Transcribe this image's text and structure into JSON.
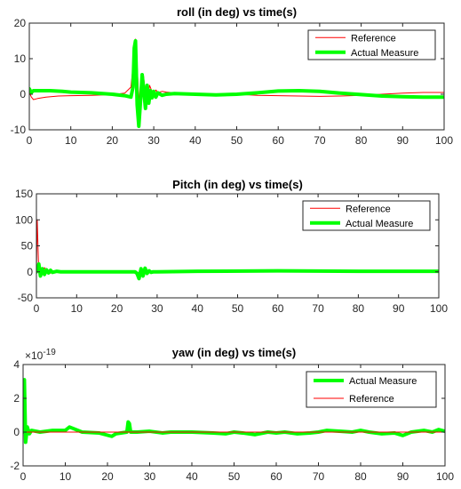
{
  "chart_data": [
    {
      "type": "line",
      "title": "roll (in deg) vs time(s)",
      "xlim": [
        0,
        100
      ],
      "ylim": [
        -10,
        20
      ],
      "xticks": [
        0,
        10,
        20,
        30,
        40,
        50,
        60,
        70,
        80,
        90,
        100
      ],
      "yticks": [
        -10,
        0,
        10,
        20
      ],
      "exponent_label": "",
      "legend_position": "top-right",
      "series": [
        {
          "name": "Reference",
          "color": "#ff0000",
          "line_width": 1,
          "x": [
            0,
            0.5,
            1,
            2,
            4,
            7,
            10,
            15,
            20,
            23,
            24.5,
            25.2,
            25.6,
            26,
            26.5,
            27,
            27.5,
            28,
            28.5,
            29,
            29.5,
            30,
            30.5,
            31,
            32,
            33,
            35,
            40,
            45,
            50,
            55,
            60,
            65,
            70,
            75,
            80,
            85,
            90,
            95,
            100
          ],
          "y": [
            0.5,
            -0.8,
            -1.5,
            -1.2,
            -0.8,
            -0.5,
            -0.4,
            -0.3,
            -0.1,
            0.3,
            2,
            10,
            15.5,
            8,
            -4,
            1,
            5.5,
            0,
            -1.5,
            2.5,
            1,
            -0.8,
            1.2,
            0.5,
            0.8,
            0.6,
            0.4,
            0.2,
            0,
            0,
            -0.3,
            -0.4,
            -0.5,
            -0.6,
            -0.5,
            -0.3,
            0,
            0.3,
            0.5,
            0.5
          ]
        },
        {
          "name": "Actual Measure",
          "color": "#00ff00",
          "line_width": 4,
          "x": [
            0,
            0.5,
            1,
            3,
            5,
            8,
            10,
            15,
            20,
            23,
            24.5,
            25,
            25.3,
            25.6,
            26,
            26.4,
            26.8,
            27.2,
            27.6,
            28,
            28.4,
            28.8,
            29.2,
            29.6,
            30,
            30.5,
            31,
            32,
            33,
            35,
            40,
            45,
            50,
            55,
            60,
            65,
            70,
            75,
            80,
            85,
            90,
            95,
            100
          ],
          "y": [
            1.5,
            0.5,
            1,
            1,
            1,
            0.8,
            0.6,
            0.4,
            0,
            -0.4,
            -0.8,
            2,
            13,
            15,
            -3,
            -9,
            -2,
            5.5,
            1,
            -4,
            2.5,
            -2.5,
            1,
            -1,
            0.8,
            -0.8,
            0.4,
            -0.3,
            0,
            0.2,
            0,
            -0.2,
            0,
            0.4,
            0.9,
            1,
            0.8,
            0.3,
            -0.1,
            -0.5,
            -0.7,
            -0.8,
            -0.8
          ]
        }
      ]
    },
    {
      "type": "line",
      "title": "Pitch (in deg) vs time(s)",
      "xlim": [
        0,
        100
      ],
      "ylim": [
        -50,
        150
      ],
      "xticks": [
        0,
        10,
        20,
        30,
        40,
        50,
        60,
        70,
        80,
        90,
        100
      ],
      "yticks": [
        -50,
        0,
        50,
        100,
        150
      ],
      "exponent_label": "",
      "legend_position": "top-right",
      "series": [
        {
          "name": "Reference",
          "color": "#ff0000",
          "line_width": 1,
          "x": [
            0,
            0.2,
            0.5,
            1,
            2,
            3,
            5,
            10,
            25,
            26,
            27,
            40,
            60,
            100
          ],
          "y": [
            0,
            100,
            20,
            -2,
            8,
            -4,
            2,
            0,
            0,
            -5,
            0,
            1,
            1,
            1
          ]
        },
        {
          "name": "Actual Measure",
          "color": "#00ff00",
          "line_width": 4,
          "x": [
            0,
            0.3,
            0.6,
            1,
            1.5,
            2,
            2.5,
            3,
            3.5,
            4,
            5,
            6,
            8,
            10,
            20,
            24.5,
            25,
            25.5,
            26,
            26.5,
            27,
            27.5,
            28,
            28.5,
            29,
            30,
            40,
            60,
            80,
            100
          ],
          "y": [
            0,
            3,
            15,
            -8,
            6,
            -5,
            4,
            -2,
            3,
            -1,
            1,
            0,
            0,
            0,
            0,
            0,
            -3,
            -13,
            6,
            -8,
            7,
            -3,
            2,
            -1,
            0,
            0,
            1,
            2,
            1,
            1
          ]
        }
      ]
    },
    {
      "type": "line",
      "title": "yaw (in deg) vs time(s)",
      "xlim": [
        0,
        100
      ],
      "ylim": [
        -2,
        4
      ],
      "xticks": [
        0,
        10,
        20,
        30,
        40,
        50,
        60,
        70,
        80,
        90,
        100
      ],
      "yticks": [
        -2,
        0,
        2,
        4
      ],
      "exponent_label": "×10",
      "exponent_power": "-19",
      "legend_position": "top-right",
      "series": [
        {
          "name": "Actual Measure",
          "color": "#00ff00",
          "line_width": 4,
          "x": [
            0,
            0.3,
            0.6,
            1,
            1.5,
            2,
            4,
            7,
            10,
            11,
            12,
            14,
            18,
            21,
            22,
            24.6,
            24.9,
            25.2,
            25.5,
            27,
            30,
            33,
            35,
            38,
            40,
            45,
            48,
            50,
            52,
            55,
            58,
            60,
            62,
            65,
            68,
            70,
            72,
            75,
            78,
            80,
            82,
            85,
            88,
            90,
            92,
            95,
            97,
            98.5,
            100
          ],
          "y": [
            0,
            3.1,
            -0.6,
            0.3,
            -0.1,
            0.1,
            0,
            0.1,
            0.1,
            0.3,
            0.2,
            0,
            -0.05,
            -0.25,
            -0.1,
            0,
            0.6,
            0.5,
            0,
            0,
            0.05,
            -0.05,
            0,
            0,
            0,
            -0.05,
            -0.1,
            0,
            -0.05,
            -0.15,
            0,
            -0.05,
            0,
            -0.1,
            -0.05,
            0,
            0.1,
            0.05,
            0,
            0.1,
            0,
            -0.1,
            -0.05,
            -0.2,
            0,
            0.1,
            0,
            0.15,
            0.05
          ]
        },
        {
          "name": "Reference",
          "color": "#ff0000",
          "line_width": 1,
          "x": [
            0,
            100
          ],
          "y": [
            0,
            0
          ]
        }
      ]
    }
  ]
}
